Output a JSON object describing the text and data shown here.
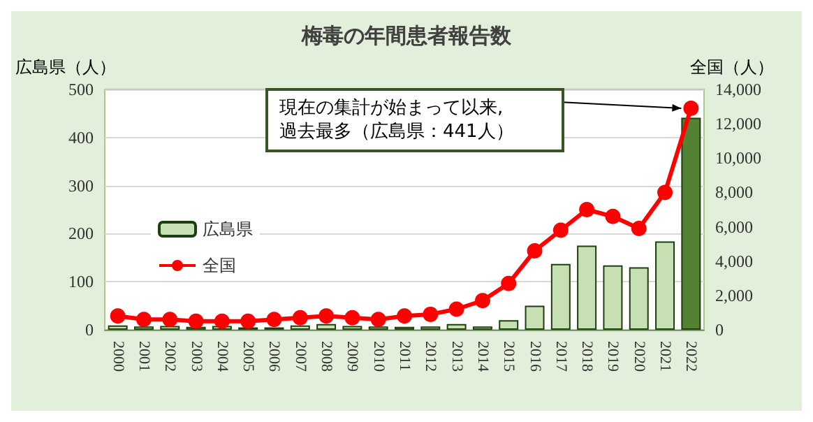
{
  "chart_data": {
    "type": "bar",
    "title": "梅毒の年間患者報告数",
    "ylabel": "広島県（人）",
    "y2label": "全国（人）",
    "categories": [
      "2000",
      "2001",
      "2002",
      "2003",
      "2004",
      "2005",
      "2006",
      "2007",
      "2008",
      "2009",
      "2010",
      "2011",
      "2012",
      "2013",
      "2014",
      "2015",
      "2016",
      "2017",
      "2018",
      "2019",
      "2020",
      "2021",
      "2022"
    ],
    "series": [
      {
        "name": "広島県",
        "color": "#c6e0b4",
        "colors": [
          "#c6e0b4",
          "#c6e0b4",
          "#c6e0b4",
          "#c6e0b4",
          "#c6e0b4",
          "#c6e0b4",
          "#c6e0b4",
          "#c6e0b4",
          "#c6e0b4",
          "#c6e0b4",
          "#c6e0b4",
          "#c6e0b4",
          "#c6e0b4",
          "#c6e0b4",
          "#c6e0b4",
          "#c6e0b4",
          "#c6e0b4",
          "#c6e0b4",
          "#c6e0b4",
          "#c6e0b4",
          "#c6e0b4",
          "#c6e0b4",
          "#548235"
        ],
        "values": [
          9,
          7,
          8,
          6,
          8,
          5,
          5,
          9,
          12,
          8,
          7,
          6,
          7,
          12,
          7,
          20,
          50,
          137,
          175,
          134,
          130,
          184,
          441
        ]
      },
      {
        "name": "全国",
        "type": "line",
        "axis": "y2",
        "color": "#ff0000",
        "values": [
          800,
          600,
          600,
          500,
          500,
          500,
          600,
          700,
          800,
          700,
          600,
          800,
          900,
          1200,
          1700,
          2700,
          4600,
          5800,
          7000,
          6600,
          5900,
          8000,
          12900
        ]
      }
    ],
    "ylim": [
      0,
      500
    ],
    "yticks": [
      0,
      100,
      200,
      300,
      400,
      500
    ],
    "y2lim": [
      0,
      14000
    ],
    "y2ticks": [
      0,
      {
        "value": 2000,
        "label": "2,000"
      },
      {
        "value": 4000,
        "label": "4,000"
      },
      {
        "value": 6000,
        "label": "6,000"
      },
      {
        "value": 8000,
        "label": "8,000"
      },
      {
        "value": 10000,
        "label": "10,000"
      },
      {
        "value": 12000,
        "label": "12,000"
      },
      {
        "value": 14000,
        "label": "14,000"
      }
    ],
    "annotations": [
      "現在の集計が始まって以来,\n過去最多（広島県：441人）"
    ],
    "grid": "y",
    "legend": "left",
    "marker": "circle",
    "line_style": "solid"
  }
}
